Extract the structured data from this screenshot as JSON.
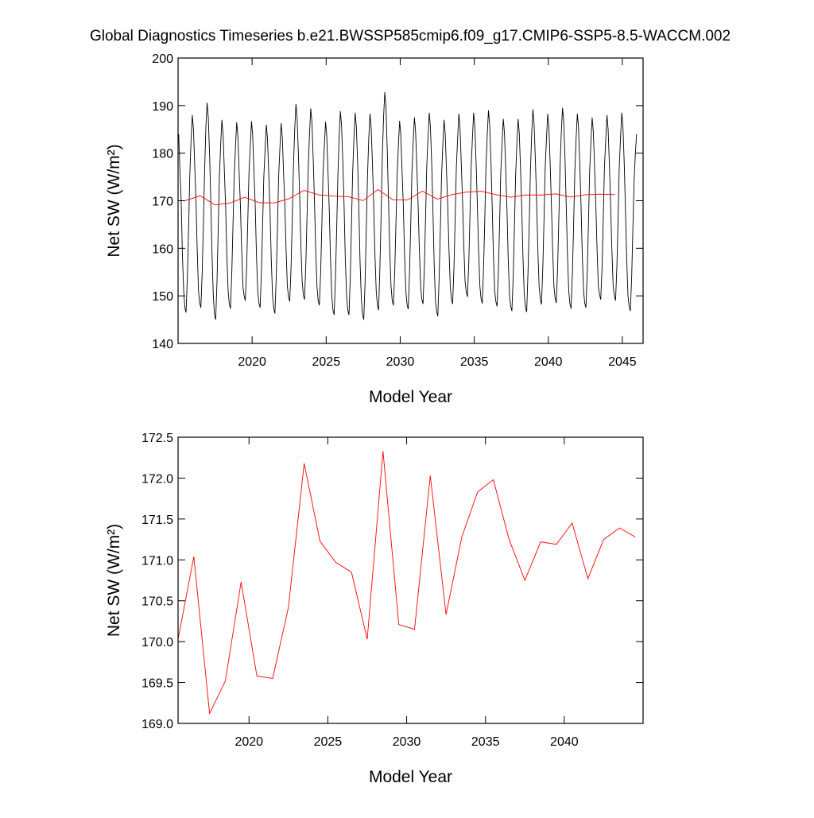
{
  "chart_data": [
    {
      "type": "line",
      "title": "Global Diagnostics Timeseries b.e21.BWSSP585cmip6.f09_g17.CMIP6-SSP5-8.5-WACCM.002",
      "xlabel": "Model Year",
      "ylabel": "Net SW (W/m²)",
      "xlim": [
        2015,
        2046.4
      ],
      "xticks": [
        2020,
        2025,
        2030,
        2035,
        2040,
        2045
      ],
      "ylim": [
        140,
        200
      ],
      "yticks": [
        140,
        150,
        160,
        170,
        180,
        190,
        200
      ],
      "series": [
        {
          "color": "#000000",
          "x": [
            2015.04,
            2015.13,
            2015.21,
            2015.29,
            2015.38,
            2015.46,
            2015.54,
            2015.63,
            2015.71,
            2015.79,
            2015.88,
            2015.96,
            2016.04,
            2016.13,
            2016.21,
            2016.29,
            2016.38,
            2016.46,
            2016.54,
            2016.63,
            2016.71,
            2016.79,
            2016.88,
            2016.96,
            2017.04,
            2017.13,
            2017.21,
            2017.29,
            2017.38,
            2017.46,
            2017.54,
            2017.63,
            2017.71,
            2017.79,
            2017.88,
            2017.96,
            2018.04,
            2018.13,
            2018.21,
            2018.29,
            2018.38,
            2018.46,
            2018.54,
            2018.63,
            2018.71,
            2018.79,
            2018.88,
            2018.96,
            2019.04,
            2019.13,
            2019.21,
            2019.29,
            2019.38,
            2019.46,
            2019.54,
            2019.63,
            2019.71,
            2019.79,
            2019.88,
            2019.96,
            2020.04,
            2020.13,
            2020.21,
            2020.29,
            2020.38,
            2020.46,
            2020.54,
            2020.63,
            2020.71,
            2020.79,
            2020.88,
            2020.96,
            2021.04,
            2021.13,
            2021.21,
            2021.29,
            2021.38,
            2021.46,
            2021.54,
            2021.63,
            2021.71,
            2021.79,
            2021.88,
            2021.96,
            2022.04,
            2022.13,
            2022.21,
            2022.29,
            2022.38,
            2022.46,
            2022.54,
            2022.63,
            2022.71,
            2022.79,
            2022.88,
            2022.96,
            2023.04,
            2023.13,
            2023.21,
            2023.29,
            2023.38,
            2023.46,
            2023.54,
            2023.63,
            2023.71,
            2023.79,
            2023.88,
            2023.96,
            2024.04,
            2024.13,
            2024.21,
            2024.29,
            2024.38,
            2024.46,
            2024.54,
            2024.63,
            2024.71,
            2024.79,
            2024.88,
            2024.96,
            2025.04,
            2025.13,
            2025.21,
            2025.29,
            2025.38,
            2025.46,
            2025.54,
            2025.63,
            2025.71,
            2025.79,
            2025.88,
            2025.96,
            2026.04,
            2026.13,
            2026.21,
            2026.29,
            2026.38,
            2026.46,
            2026.54,
            2026.63,
            2026.71,
            2026.79,
            2026.88,
            2026.96,
            2027.04,
            2027.13,
            2027.21,
            2027.29,
            2027.38,
            2027.46,
            2027.54,
            2027.63,
            2027.71,
            2027.79,
            2027.88,
            2027.96,
            2028.04,
            2028.13,
            2028.21,
            2028.29,
            2028.38,
            2028.46,
            2028.54,
            2028.63,
            2028.71,
            2028.79,
            2028.88,
            2028.96,
            2029.04,
            2029.13,
            2029.21,
            2029.29,
            2029.38,
            2029.46,
            2029.54,
            2029.63,
            2029.71,
            2029.79,
            2029.88,
            2029.96,
            2030.04,
            2030.13,
            2030.21,
            2030.29,
            2030.38,
            2030.46,
            2030.54,
            2030.63,
            2030.71,
            2030.79,
            2030.88,
            2030.96,
            2031.04,
            2031.13,
            2031.21,
            2031.29,
            2031.38,
            2031.46,
            2031.54,
            2031.63,
            2031.71,
            2031.79,
            2031.88,
            2031.96,
            2032.04,
            2032.13,
            2032.21,
            2032.29,
            2032.38,
            2032.46,
            2032.54,
            2032.63,
            2032.71,
            2032.79,
            2032.88,
            2032.96,
            2033.04,
            2033.13,
            2033.21,
            2033.29,
            2033.38,
            2033.46,
            2033.54,
            2033.63,
            2033.71,
            2033.79,
            2033.88,
            2033.96,
            2034.04,
            2034.13,
            2034.21,
            2034.29,
            2034.38,
            2034.46,
            2034.54,
            2034.63,
            2034.71,
            2034.79,
            2034.88,
            2034.96,
            2035.04,
            2035.13,
            2035.21,
            2035.29,
            2035.38,
            2035.46,
            2035.54,
            2035.63,
            2035.71,
            2035.79,
            2035.88,
            2035.96,
            2036.04,
            2036.13,
            2036.21,
            2036.29,
            2036.38,
            2036.46,
            2036.54,
            2036.63,
            2036.71,
            2036.79,
            2036.88,
            2036.96,
            2037.04,
            2037.13,
            2037.21,
            2037.29,
            2037.38,
            2037.46,
            2037.54,
            2037.63,
            2037.71,
            2037.79,
            2037.88,
            2037.96,
            2038.04,
            2038.13,
            2038.21,
            2038.29,
            2038.38,
            2038.46,
            2038.54,
            2038.63,
            2038.71,
            2038.79,
            2038.88,
            2038.96,
            2039.04,
            2039.13,
            2039.21,
            2039.29,
            2039.38,
            2039.46,
            2039.54,
            2039.63,
            2039.71,
            2039.79,
            2039.88,
            2039.96,
            2040.04,
            2040.13,
            2040.21,
            2040.29,
            2040.38,
            2040.46,
            2040.54,
            2040.63,
            2040.71,
            2040.79,
            2040.88,
            2040.96,
            2041.04,
            2041.13,
            2041.21,
            2041.29,
            2041.38,
            2041.46,
            2041.54,
            2041.63,
            2041.71,
            2041.79,
            2041.88,
            2041.96,
            2042.04,
            2042.13,
            2042.21,
            2042.29,
            2042.38,
            2042.46,
            2042.54,
            2042.63,
            2042.71,
            2042.79,
            2042.88,
            2042.96,
            2043.04,
            2043.13,
            2043.21,
            2043.29,
            2043.38,
            2043.46,
            2043.54,
            2043.63,
            2043.71,
            2043.79,
            2043.88,
            2043.96,
            2044.04,
            2044.13,
            2044.21,
            2044.29,
            2044.38,
            2044.46,
            2044.54,
            2044.63,
            2044.71,
            2044.79,
            2044.88,
            2044.96,
            2045.04,
            2045.13,
            2045.21,
            2045.29,
            2045.38,
            2045.46,
            2045.54,
            2045.63,
            2045.71,
            2045.79,
            2045.88,
            2045.96
          ],
          "values": [
            184,
            176,
            170,
            159,
            151,
            147.5,
            146.5,
            154,
            164,
            175,
            183,
            188,
            185,
            177,
            170,
            160,
            151,
            148.5,
            147.5,
            155,
            165,
            176,
            185.6,
            190.6,
            187.6,
            179.6,
            170,
            159,
            150,
            146,
            145,
            153,
            164,
            175,
            182,
            187,
            184,
            176,
            169,
            159,
            151,
            148.3,
            147.3,
            155,
            165,
            175,
            181.5,
            186.5,
            183.5,
            175.5,
            169,
            160,
            152,
            150,
            149,
            156,
            166,
            176,
            181.7,
            186.7,
            183.7,
            175.7,
            169,
            159,
            151,
            148.5,
            147.5,
            155,
            165,
            175,
            181,
            186,
            183,
            175,
            168,
            158,
            150,
            147.3,
            146.3,
            154,
            164,
            175,
            181.3,
            186.3,
            183.3,
            175.3,
            169,
            160,
            152,
            149.8,
            148.8,
            156,
            166,
            177,
            185.3,
            190.3,
            187.3,
            179.3,
            171,
            161,
            153,
            150.2,
            149.2,
            157,
            167,
            177,
            184.4,
            189.4,
            186.4,
            178.4,
            170,
            160,
            152,
            149,
            148,
            155,
            165,
            176,
            181.6,
            186.6,
            183.6,
            175.6,
            168,
            158,
            150,
            147,
            146,
            154,
            164,
            175,
            183.8,
            188.8,
            185.8,
            177.8,
            169,
            158,
            150,
            147,
            146,
            154,
            165,
            176,
            183.5,
            188.5,
            185.5,
            177.5,
            168,
            157,
            149,
            146,
            145,
            153,
            164,
            175,
            183.3,
            188.3,
            185.3,
            177.3,
            169,
            159,
            151,
            148,
            147,
            156,
            167,
            179,
            187.8,
            192.8,
            189.8,
            180,
            170,
            160,
            152,
            149,
            148,
            155,
            165,
            175,
            181.8,
            186.8,
            183.8,
            175.8,
            169,
            159,
            151,
            148.2,
            147.2,
            155,
            165,
            176,
            182.5,
            187.5,
            184.5,
            176.5,
            169,
            160,
            152,
            149.3,
            148.3,
            156,
            166,
            177,
            183.5,
            188.5,
            185.5,
            177.5,
            168,
            157,
            149,
            146.7,
            145.7,
            154,
            164,
            175,
            182,
            187,
            184,
            176,
            169,
            160,
            152,
            149.3,
            148.3,
            156,
            166,
            177,
            183.3,
            188.3,
            185.3,
            177.3,
            170,
            161,
            153,
            150.8,
            149.8,
            157,
            167,
            177,
            183.5,
            188.5,
            185.5,
            177.5,
            169,
            160,
            152,
            149.4,
            148.4,
            156,
            166,
            177,
            184,
            189,
            186,
            178,
            169,
            159,
            151,
            148.8,
            147.8,
            155,
            165,
            176,
            182.2,
            187.2,
            184.2,
            176.2,
            168,
            158,
            150,
            147.8,
            146.8,
            154,
            164,
            175,
            182.2,
            187.2,
            184.2,
            176.2,
            168,
            158,
            150,
            147.6,
            146.6,
            155,
            165,
            176,
            184.2,
            189.2,
            186.2,
            178.2,
            170,
            160,
            152,
            149.2,
            148.2,
            156,
            166,
            177,
            183.3,
            188.3,
            185.3,
            177.3,
            169,
            160,
            152,
            149.5,
            148.5,
            156,
            166,
            177,
            184.5,
            189.5,
            186.5,
            178.5,
            169,
            159,
            151,
            148.3,
            147.3,
            155,
            165,
            176,
            183.3,
            188.3,
            185.3,
            177.3,
            169,
            159,
            151,
            148.5,
            147.5,
            155,
            165,
            176,
            182.5,
            187.5,
            184.5,
            176.5,
            169,
            160,
            152,
            150.2,
            149.2,
            156,
            166,
            177,
            183,
            188,
            185,
            177,
            169,
            160,
            152,
            150,
            149,
            156,
            166,
            177,
            183.5,
            188.5,
            185.5,
            177.5,
            168,
            158,
            150,
            147.8,
            146.8,
            154,
            164,
            174,
            180,
            184
          ]
        },
        {
          "color": "#ff0000",
          "x": [
            2015.5,
            2016.5,
            2017.5,
            2018.5,
            2019.5,
            2020.5,
            2021.5,
            2022.5,
            2023.5,
            2024.5,
            2025.5,
            2026.5,
            2027.5,
            2028.5,
            2029.5,
            2030.5,
            2031.5,
            2032.5,
            2033.5,
            2034.5,
            2035.5,
            2036.5,
            2037.5,
            2038.5,
            2039.5,
            2040.5,
            2041.5,
            2042.5,
            2043.5,
            2044.5
          ],
          "values": [
            170.03,
            171.04,
            169.12,
            169.52,
            170.73,
            169.58,
            169.55,
            170.42,
            172.18,
            171.23,
            170.97,
            170.85,
            170.03,
            172.33,
            170.21,
            170.15,
            172.03,
            170.33,
            171.28,
            171.83,
            171.98,
            171.25,
            170.75,
            171.22,
            171.19,
            171.45,
            170.77,
            171.25,
            171.39,
            171.28
          ]
        }
      ]
    },
    {
      "type": "line",
      "xlabel": "Model Year",
      "ylabel": "Net SW (W/m²)",
      "xlim": [
        2015.5,
        2045
      ],
      "xticks": [
        2020,
        2025,
        2030,
        2035,
        2040
      ],
      "ylim": [
        169,
        172.5
      ],
      "yticks": [
        {
          "value": 169,
          "label": "169.0"
        },
        {
          "value": 169.5,
          "label": "169.5"
        },
        {
          "value": 170,
          "label": "170.0"
        },
        {
          "value": 170.5,
          "label": "170.5"
        },
        {
          "value": 171,
          "label": "171.0"
        },
        {
          "value": 171.5,
          "label": "171.5"
        },
        {
          "value": 172,
          "label": "172.0"
        },
        {
          "value": 172.5,
          "label": "172.5"
        }
      ],
      "series": [
        {
          "color": "#ff0000",
          "x": [
            2015.5,
            2016.5,
            2017.5,
            2018.5,
            2019.5,
            2020.5,
            2021.5,
            2022.5,
            2023.5,
            2024.5,
            2025.5,
            2026.5,
            2027.5,
            2028.5,
            2029.5,
            2030.5,
            2031.5,
            2032.5,
            2033.5,
            2034.5,
            2035.5,
            2036.5,
            2037.5,
            2038.5,
            2039.5,
            2040.5,
            2041.5,
            2042.5,
            2043.5,
            2044.5
          ],
          "values": [
            170.03,
            171.04,
            169.12,
            169.52,
            170.73,
            169.58,
            169.55,
            170.42,
            172.18,
            171.23,
            170.97,
            170.85,
            170.03,
            172.33,
            170.21,
            170.15,
            172.03,
            170.33,
            171.28,
            171.83,
            171.98,
            171.25,
            170.75,
            171.22,
            171.19,
            171.45,
            170.77,
            171.25,
            171.39,
            171.28
          ]
        }
      ]
    }
  ]
}
